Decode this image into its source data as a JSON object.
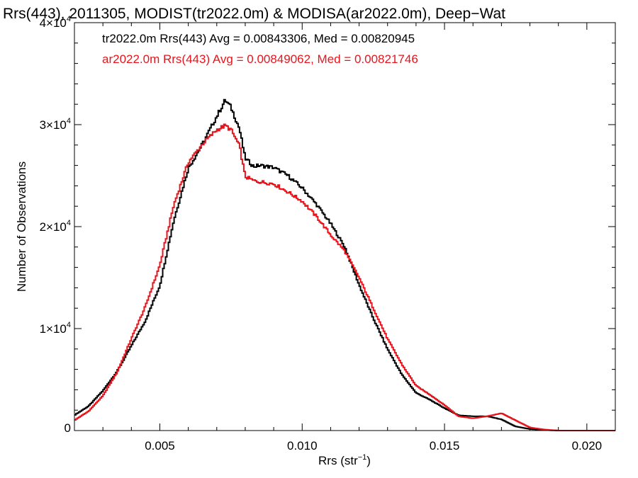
{
  "chart_data": {
    "type": "line",
    "style": "step",
    "title": "Rrs(443), 2011305, MODIST(tr2022.0m) & MODISA(ar2022.0m), Deep−Wat",
    "xlabel": {
      "base": "Rrs (str",
      "sup": "−1",
      "close": ")"
    },
    "ylabel": "Number of Observations",
    "xlim": [
      0.002,
      0.021
    ],
    "ylim": [
      0,
      40000
    ],
    "grid": false,
    "legend_position": "top-left",
    "x_ticks": [
      {
        "value": 0.005,
        "label": "0.005"
      },
      {
        "value": 0.01,
        "label": "0.010"
      },
      {
        "value": 0.015,
        "label": "0.015"
      },
      {
        "value": 0.02,
        "label": "0.020"
      }
    ],
    "y_ticks": [
      {
        "value": 0,
        "mant": "0",
        "exp": ""
      },
      {
        "value": 10000,
        "mant": "1×10",
        "exp": "4"
      },
      {
        "value": 20000,
        "mant": "2×10",
        "exp": "4"
      },
      {
        "value": 30000,
        "mant": "3×10",
        "exp": "4"
      },
      {
        "value": 40000,
        "mant": "4×10",
        "exp": "4"
      }
    ],
    "series": [
      {
        "legend": "tr2022.0m Rrs(443) Avg = 0.00843306, Med = 0.00820945",
        "color": "#000000",
        "x": [
          0.002,
          0.0025,
          0.003,
          0.0035,
          0.004,
          0.0045,
          0.005,
          0.0055,
          0.006,
          0.0065,
          0.007,
          0.0073,
          0.0075,
          0.0078,
          0.008,
          0.0083,
          0.0085,
          0.009,
          0.0095,
          0.01,
          0.0105,
          0.011,
          0.0115,
          0.012,
          0.0125,
          0.013,
          0.0135,
          0.014,
          0.0145,
          0.015,
          0.0155,
          0.016,
          0.0165,
          0.017,
          0.0175,
          0.018,
          0.0185,
          0.019,
          0.02,
          0.021
        ],
        "y": [
          1500,
          2400,
          3900,
          5800,
          8300,
          10800,
          14200,
          20700,
          25700,
          28100,
          30800,
          32400,
          31700,
          29600,
          26700,
          25900,
          26000,
          25800,
          25000,
          23800,
          22200,
          20300,
          18000,
          14300,
          11000,
          8000,
          5500,
          3700,
          3000,
          2200,
          1500,
          1400,
          1400,
          1100,
          400,
          150,
          50,
          0,
          0,
          0
        ]
      },
      {
        "legend": "ar2022.0m Rrs(443) Avg = 0.00849062, Med = 0.00821746",
        "color": "#e8141c",
        "x": [
          0.002,
          0.0025,
          0.003,
          0.0035,
          0.004,
          0.0045,
          0.005,
          0.0055,
          0.006,
          0.0065,
          0.007,
          0.0073,
          0.0075,
          0.0078,
          0.008,
          0.0083,
          0.0085,
          0.009,
          0.0095,
          0.01,
          0.0105,
          0.011,
          0.0115,
          0.012,
          0.0125,
          0.013,
          0.0135,
          0.014,
          0.0145,
          0.015,
          0.0155,
          0.016,
          0.0165,
          0.017,
          0.0175,
          0.018,
          0.0185,
          0.019,
          0.02,
          0.021
        ],
        "y": [
          1000,
          1900,
          3400,
          5700,
          9000,
          12200,
          16200,
          22200,
          26300,
          28100,
          29500,
          29900,
          29500,
          27900,
          24900,
          24500,
          24400,
          24200,
          23400,
          22500,
          21000,
          19200,
          17600,
          15000,
          12000,
          9000,
          6500,
          4400,
          3500,
          2500,
          1400,
          1200,
          1400,
          1700,
          1000,
          300,
          100,
          0,
          0,
          0
        ]
      }
    ]
  }
}
